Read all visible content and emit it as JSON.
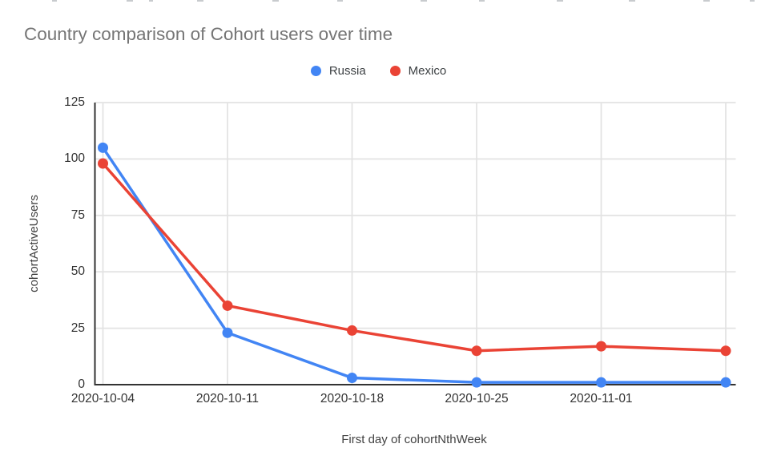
{
  "title": {
    "text": "Country comparison of Cohort users over time",
    "color": "#757575"
  },
  "legend": {
    "items": [
      {
        "label": "Russia",
        "color": "#4285F4"
      },
      {
        "label": "Mexico",
        "color": "#EA4335"
      }
    ]
  },
  "chart_data": {
    "type": "line",
    "title": "Country comparison of Cohort users over time",
    "xlabel": "First day of cohortNthWeek",
    "ylabel": "cohortActiveUsers",
    "categories": [
      "2020-10-04",
      "2020-10-11",
      "2020-10-18",
      "2020-10-25",
      "2020-11-01",
      ""
    ],
    "series": [
      {
        "name": "Russia",
        "color": "#4285F4",
        "values": [
          105,
          23,
          3,
          1,
          1,
          1
        ]
      },
      {
        "name": "Mexico",
        "color": "#EA4335",
        "values": [
          98,
          35,
          24,
          15,
          17,
          15
        ]
      }
    ],
    "ylim": [
      0,
      125
    ],
    "yticks": [
      0,
      25,
      50,
      75,
      100,
      125
    ],
    "grid": true,
    "legend_position": "top",
    "marker": "circle"
  },
  "colors": {
    "grid": "#e3e3e3",
    "axis": "#333333",
    "tick_label": "#333333",
    "axis_title": "#424242",
    "background": "#ffffff"
  }
}
